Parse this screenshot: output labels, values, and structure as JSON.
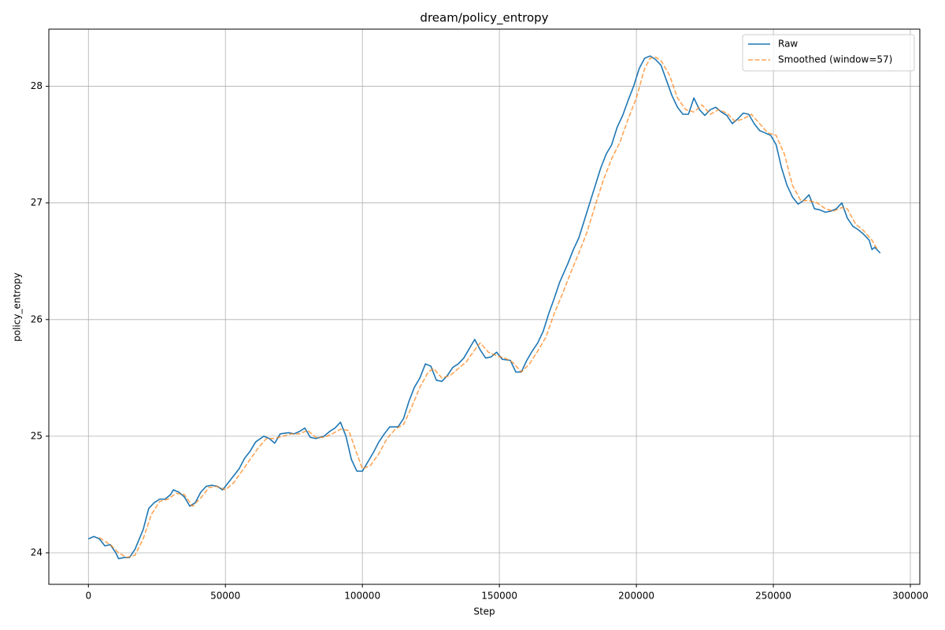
{
  "chart_data": {
    "type": "line",
    "title": "dream/policy_entropy",
    "xlabel": "Step",
    "ylabel": "policy_entropy",
    "xlim": [
      -14450,
      303450
    ],
    "ylim": [
      23.73,
      28.49
    ],
    "xticks": [
      0,
      50000,
      100000,
      150000,
      200000,
      250000,
      300000
    ],
    "yticks": [
      24,
      25,
      26,
      27,
      28
    ],
    "grid": true,
    "legend": "upper right",
    "series": [
      {
        "name": "Raw",
        "color": "#1f77b4",
        "linestyle": "solid",
        "opacity": 1,
        "x": [
          0,
          2000,
          4000,
          6000,
          8000,
          10000,
          11000,
          13000,
          15000,
          17000,
          20000,
          22000,
          24000,
          26000,
          28000,
          30000,
          31000,
          33000,
          35000,
          37000,
          39000,
          41000,
          43000,
          45000,
          47000,
          49000,
          51000,
          53000,
          55000,
          57000,
          59000,
          61000,
          64000,
          66000,
          68000,
          70000,
          73000,
          75000,
          77000,
          79000,
          81000,
          83000,
          86000,
          88000,
          90000,
          92000,
          94000,
          96000,
          98000,
          100000,
          102000,
          104000,
          106000,
          108000,
          110000,
          113000,
          115000,
          117000,
          119000,
          121000,
          123000,
          125000,
          127000,
          129000,
          131000,
          133000,
          135000,
          137000,
          139000,
          141000,
          143000,
          145000,
          147000,
          149000,
          151000,
          154000,
          156000,
          158000,
          160000,
          162000,
          164000,
          166000,
          168000,
          170000,
          172000,
          175000,
          177000,
          179000,
          181000,
          183000,
          185000,
          187000,
          189000,
          191000,
          193000,
          195000,
          197000,
          199000,
          201000,
          203000,
          205000,
          207000,
          209000,
          211000,
          213000,
          215000,
          217000,
          219000,
          221000,
          223000,
          225000,
          227000,
          229000,
          231000,
          233000,
          235000,
          237000,
          239000,
          241000,
          243000,
          245000,
          247000,
          249000,
          251000,
          253000,
          255000,
          257000,
          259000,
          261000,
          263000,
          265000,
          267000,
          269000,
          271000,
          273000,
          275000,
          277000,
          279000,
          281000,
          283000,
          285000,
          286000,
          287000,
          289000
        ],
        "values": [
          24.12,
          24.14,
          24.12,
          24.06,
          24.07,
          24.0,
          23.95,
          23.96,
          23.96,
          24.03,
          24.2,
          24.38,
          24.43,
          24.46,
          24.46,
          24.5,
          24.54,
          24.52,
          24.48,
          24.4,
          24.43,
          24.52,
          24.57,
          24.58,
          24.57,
          24.54,
          24.6,
          24.66,
          24.72,
          24.81,
          24.87,
          24.95,
          25.0,
          24.98,
          24.94,
          25.02,
          25.03,
          25.02,
          25.04,
          25.07,
          24.99,
          24.98,
          25.0,
          25.04,
          25.07,
          25.12,
          25.0,
          24.8,
          24.7,
          24.7,
          24.78,
          24.86,
          24.95,
          25.02,
          25.08,
          25.08,
          25.15,
          25.3,
          25.42,
          25.5,
          25.62,
          25.6,
          25.48,
          25.47,
          25.52,
          25.59,
          25.62,
          25.67,
          25.75,
          25.83,
          25.74,
          25.67,
          25.68,
          25.72,
          25.66,
          25.65,
          25.55,
          25.55,
          25.65,
          25.73,
          25.8,
          25.9,
          26.05,
          26.18,
          26.32,
          26.48,
          26.6,
          26.7,
          26.85,
          27.0,
          27.15,
          27.3,
          27.42,
          27.5,
          27.65,
          27.75,
          27.88,
          28.0,
          28.15,
          28.24,
          28.26,
          28.23,
          28.18,
          28.05,
          27.92,
          27.82,
          27.76,
          27.76,
          27.9,
          27.8,
          27.75,
          27.8,
          27.82,
          27.78,
          27.75,
          27.68,
          27.72,
          27.77,
          27.76,
          27.68,
          27.62,
          27.6,
          27.58,
          27.5,
          27.3,
          27.15,
          27.05,
          26.99,
          27.02,
          27.07,
          26.95,
          26.94,
          26.92,
          26.93,
          26.95,
          27.0,
          26.87,
          26.8,
          26.77,
          26.73,
          26.68,
          26.6,
          26.62,
          26.57
        ]
      },
      {
        "name": "Smoothed (window=57)",
        "color": "#ff7f0e",
        "linestyle": "dashed",
        "opacity": 0.7,
        "x": [
          4000,
          8000,
          11000,
          14000,
          17000,
          20000,
          23000,
          26000,
          29000,
          32000,
          35000,
          38000,
          41000,
          44000,
          47000,
          50000,
          53000,
          56000,
          59000,
          62000,
          65000,
          68000,
          71000,
          74000,
          77000,
          80000,
          83000,
          86000,
          89000,
          92000,
          95000,
          98000,
          100000,
          103000,
          106000,
          109000,
          112000,
          115000,
          118000,
          121000,
          124000,
          126000,
          129000,
          132000,
          135000,
          138000,
          141000,
          143000,
          146000,
          149000,
          152000,
          155000,
          158000,
          161000,
          164000,
          167000,
          170000,
          173000,
          176000,
          179000,
          182000,
          185000,
          188000,
          191000,
          194000,
          197000,
          200000,
          203000,
          205000,
          207000,
          209000,
          212000,
          215000,
          218000,
          221000,
          224000,
          227000,
          230000,
          233000,
          236000,
          239000,
          242000,
          245000,
          248000,
          251000,
          254000,
          257000,
          260000,
          263000,
          266000,
          269000,
          272000,
          275000,
          277000,
          280000,
          283000,
          286000,
          288000
        ],
        "values": [
          24.13,
          24.07,
          24.0,
          23.96,
          23.98,
          24.12,
          24.33,
          24.44,
          24.46,
          24.51,
          24.5,
          24.4,
          24.47,
          24.56,
          24.57,
          24.54,
          24.6,
          24.7,
          24.8,
          24.9,
          24.98,
          24.98,
          25.0,
          25.02,
          25.02,
          25.05,
          24.99,
          24.99,
          25.02,
          25.06,
          25.05,
          24.85,
          24.72,
          24.75,
          24.85,
          24.98,
          25.06,
          25.1,
          25.25,
          25.42,
          25.55,
          25.58,
          25.5,
          25.52,
          25.58,
          25.64,
          25.74,
          25.8,
          25.72,
          25.69,
          25.67,
          25.63,
          25.55,
          25.62,
          25.73,
          25.85,
          26.05,
          26.22,
          26.4,
          26.57,
          26.75,
          26.98,
          27.2,
          27.38,
          27.52,
          27.72,
          27.9,
          28.15,
          28.24,
          28.25,
          28.22,
          28.1,
          27.9,
          27.8,
          27.78,
          27.84,
          27.76,
          27.8,
          27.77,
          27.7,
          27.72,
          27.76,
          27.68,
          27.6,
          27.58,
          27.42,
          27.15,
          27.02,
          27.02,
          27.0,
          26.95,
          26.93,
          26.96,
          26.95,
          26.82,
          26.76,
          26.68,
          26.6
        ]
      }
    ]
  }
}
